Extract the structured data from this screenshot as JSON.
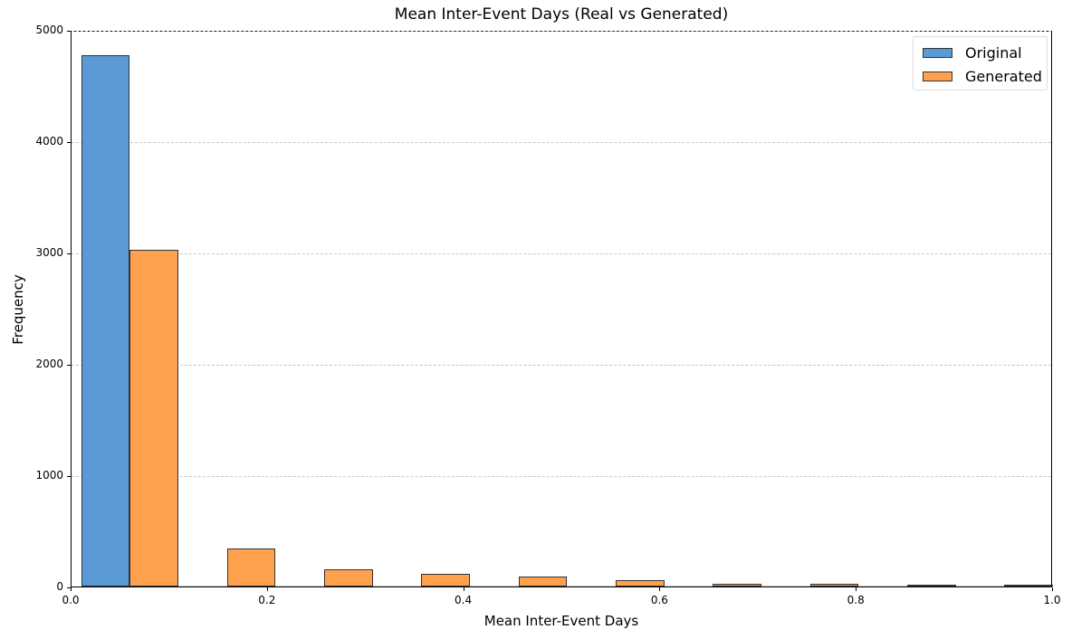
{
  "chart_data": {
    "type": "bar",
    "title": "Mean Inter-Event Days (Real vs Generated)",
    "xlabel": "Mean Inter-Event Days",
    "ylabel": "Frequency",
    "xlim": [
      0.0,
      1.0
    ],
    "ylim": [
      0,
      5000
    ],
    "xticks": [
      "0.0",
      "0.2",
      "0.4",
      "0.6",
      "0.8",
      "1.0"
    ],
    "yticks": [
      "0",
      "1000",
      "2000",
      "3000",
      "4000",
      "5000"
    ],
    "grid": "y dashed",
    "legend_position": "upper right",
    "bin_edges": [
      0.01,
      0.109,
      0.208,
      0.307,
      0.406,
      0.505,
      0.604,
      0.703,
      0.802,
      0.901,
      1.0
    ],
    "series": [
      {
        "name": "Original",
        "color": "#5b9bd5",
        "values": [
          4770,
          0,
          0,
          0,
          0,
          0,
          0,
          0,
          0,
          0
        ]
      },
      {
        "name": "Generated",
        "color": "#ffa04d",
        "values": [
          3025,
          340,
          155,
          115,
          90,
          55,
          25,
          25,
          15,
          15
        ]
      }
    ]
  },
  "legend": {
    "original": "Original",
    "generated": "Generated"
  }
}
